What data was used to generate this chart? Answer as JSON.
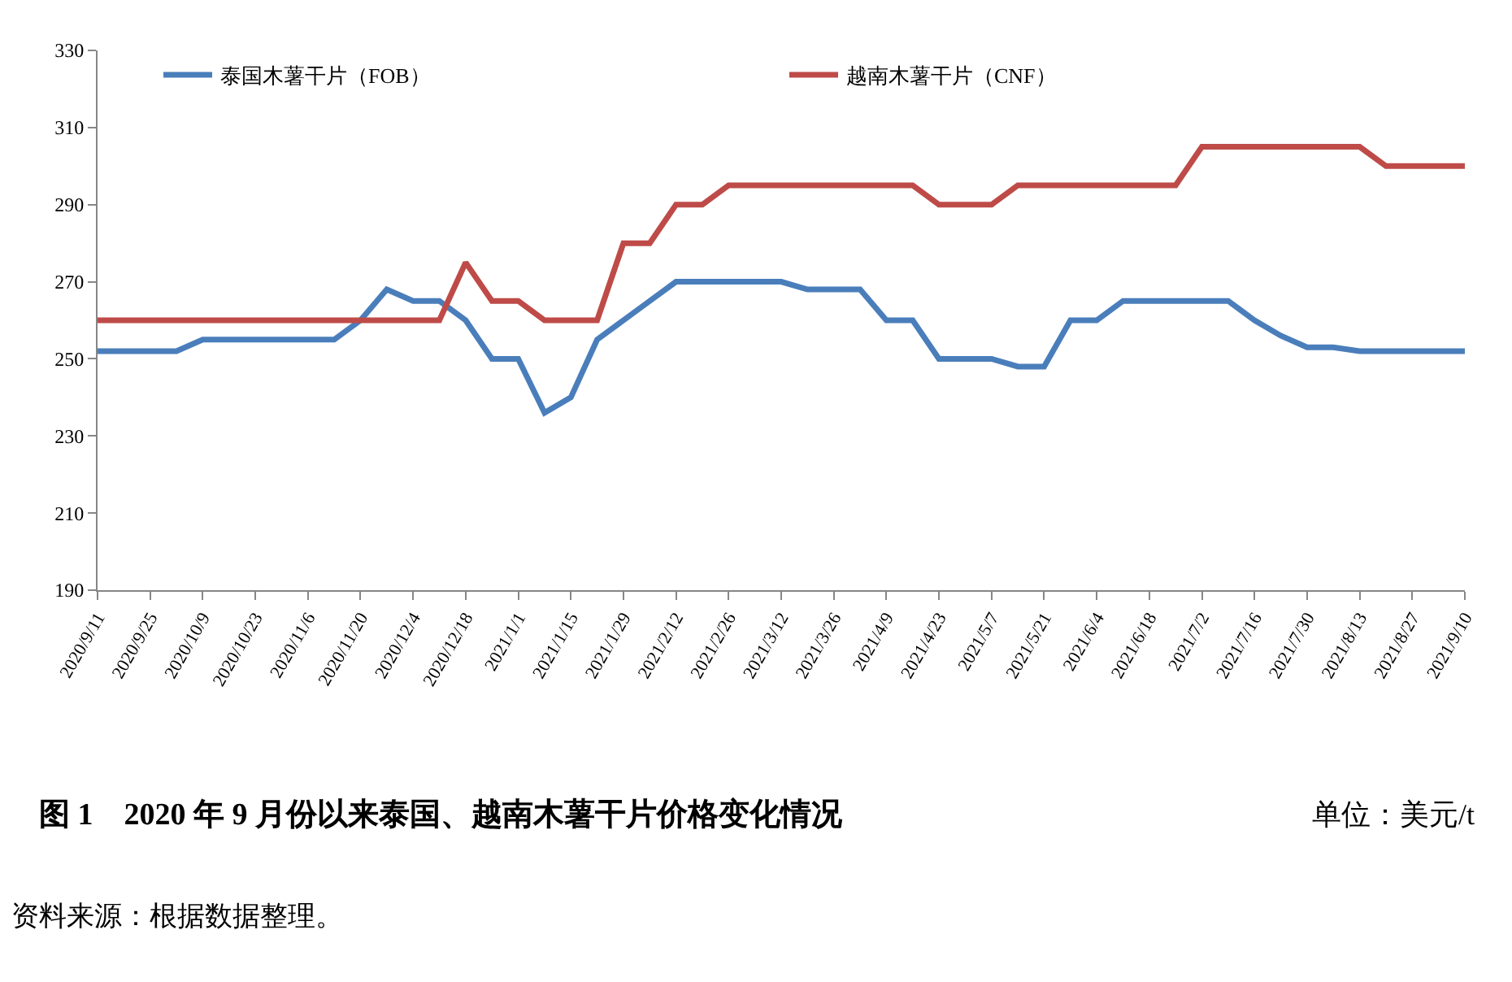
{
  "chart_data": {
    "type": "line",
    "title": "图 1　2020 年 9 月份以来泰国、越南木薯干片价格变化情况",
    "annotations": [
      "单位：美元/t",
      "资料来源：根据数据整理。"
    ],
    "categories": [
      "2020/9/11",
      null,
      "2020/9/25",
      null,
      "2020/10/9",
      null,
      "2020/10/23",
      null,
      "2020/11/6",
      null,
      "2020/11/20",
      null,
      "2020/12/4",
      null,
      "2020/12/18",
      null,
      "2021/1/1",
      null,
      "2021/1/15",
      null,
      "2021/1/29",
      null,
      "2021/2/12",
      null,
      "2021/2/26",
      null,
      "2021/3/12",
      null,
      "2021/3/26",
      null,
      "2021/4/9",
      null,
      "2021/4/23",
      null,
      "2021/5/7",
      null,
      "2021/5/21",
      null,
      "2021/6/4",
      null,
      "2021/6/18",
      null,
      "2021/7/2",
      null,
      "2021/7/16",
      null,
      "2021/7/30",
      null,
      "2021/8/13",
      null,
      "2021/8/27",
      null,
      "2021/9/10"
    ],
    "series": [
      {
        "name": "泰国木薯干片（FOB）",
        "color": "#4a7ebb",
        "values": [
          252,
          252,
          252,
          252,
          255,
          255,
          255,
          255,
          255,
          255,
          260,
          268,
          265,
          265,
          260,
          250,
          250,
          236,
          240,
          255,
          260,
          265,
          270,
          270,
          270,
          270,
          270,
          268,
          268,
          268,
          260,
          260,
          250,
          250,
          250,
          248,
          248,
          260,
          260,
          265,
          265,
          265,
          265,
          265,
          260,
          256,
          253,
          253,
          252,
          252,
          252,
          252,
          252
        ]
      },
      {
        "name": "越南木薯干片（CNF）",
        "color": "#be4b48",
        "values": [
          260,
          260,
          260,
          260,
          260,
          260,
          260,
          260,
          260,
          260,
          260,
          260,
          260,
          260,
          275,
          265,
          265,
          260,
          260,
          260,
          280,
          280,
          290,
          290,
          295,
          295,
          295,
          295,
          295,
          295,
          295,
          295,
          290,
          290,
          290,
          295,
          295,
          295,
          295,
          295,
          295,
          295,
          305,
          305,
          305,
          305,
          305,
          305,
          305,
          300,
          300,
          300,
          300
        ]
      }
    ],
    "ylim": [
      190,
      330
    ],
    "yticks": [
      190,
      210,
      230,
      250,
      270,
      290,
      310,
      330
    ],
    "legend": "top",
    "marker": "none",
    "line_style": "solid"
  }
}
